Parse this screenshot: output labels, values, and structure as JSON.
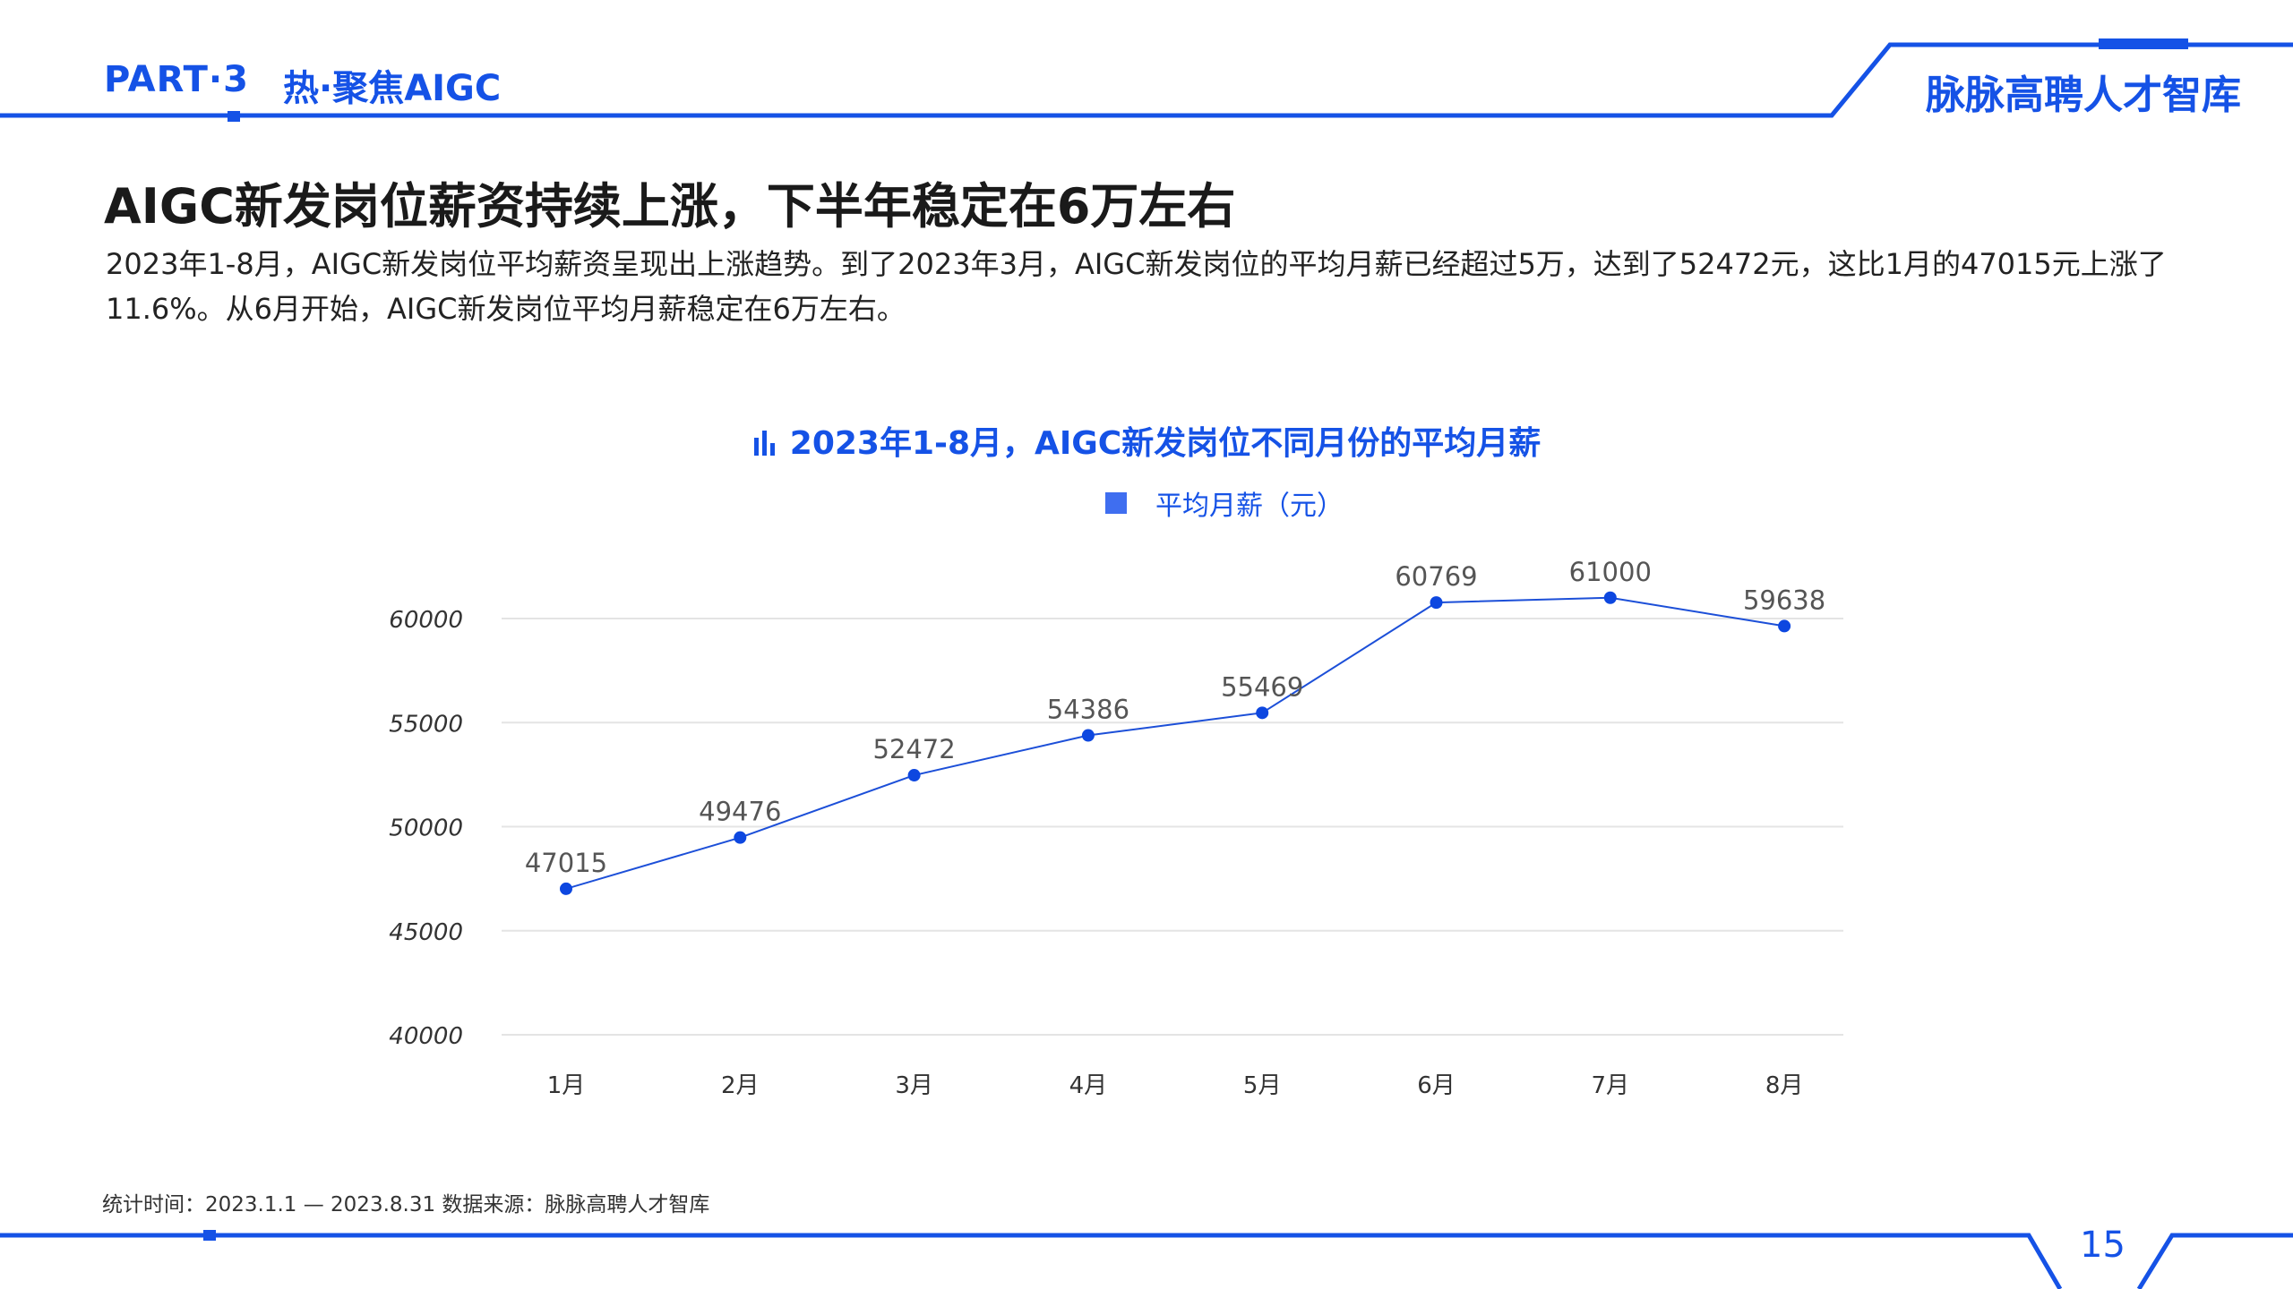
{
  "header": {
    "part_label": "PART·3",
    "topic": "热·聚焦AIGC",
    "brand": "脉脉高聘人才智库"
  },
  "main": {
    "title": "AIGC新发岗位薪资持续上涨，下半年稳定在6万左右",
    "description": "2023年1-8月，AIGC新发岗位平均薪资呈现出上涨趋势。到了2023年3月，AIGC新发岗位的平均月薪已经超过5万，达到了52472元，这比1月的47015元上涨了11.6%。从6月开始，AIGC新发岗位平均月薪稳定在6万左右。"
  },
  "chart_data": {
    "type": "line",
    "title": "2023年1-8月，AIGC新发岗位不同月份的平均月薪",
    "categories": [
      "1月",
      "2月",
      "3月",
      "4月",
      "5月",
      "6月",
      "7月",
      "8月"
    ],
    "series": [
      {
        "name": "平均月薪（元）",
        "values": [
          47015,
          49476,
          52472,
          54386,
          55469,
          60769,
          61000,
          59638
        ]
      }
    ],
    "y_ticks": [
      40000,
      45000,
      50000,
      55000,
      60000
    ],
    "ylim": [
      40000,
      61000
    ],
    "grid": true,
    "legend_position": "top-center",
    "data_labels": true,
    "colors": {
      "line": "#1c4fd8",
      "marker": "#0d47e0",
      "legend": "#3f6ef0",
      "grid": "#e4e4e4"
    }
  },
  "footer": {
    "source": "统计时间：2023.1.1 — 2023.8.31   数据来源：脉脉高聘人才智库",
    "page_number": "15"
  },
  "colors": {
    "accent": "#1552e6"
  }
}
